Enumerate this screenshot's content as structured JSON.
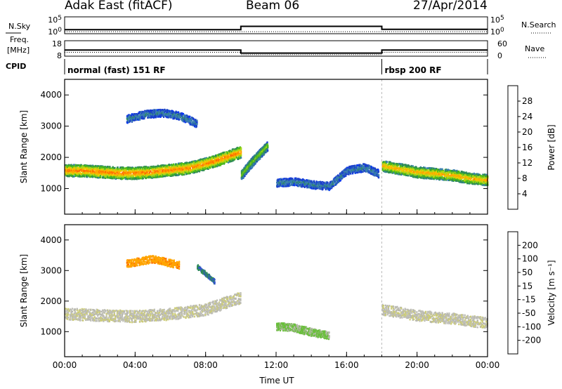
{
  "header": {
    "station": "Adak East (fitACF)",
    "beam": "Beam 06",
    "date": "27/Apr/2014"
  },
  "colors": {
    "power": [
      "#0033ff",
      "#1a3fcc",
      "#3a7fb0",
      "#2e8b57",
      "#4cbb17",
      "#a8d81c",
      "#f0c800",
      "#ffa500",
      "#ff6a00",
      "#ff2a00",
      "#e00000"
    ],
    "velocity": [
      "#ee1111",
      "#ff6a00",
      "#ffa500",
      "#cccc77",
      "#c0c0b8",
      "#b8b8b0",
      "#6abf3c",
      "#2e8b57",
      "#3355cc",
      "#1a2a99"
    ]
  },
  "chart_data": [
    {
      "type": "line",
      "panel": "noise",
      "left_label": "N.Sky",
      "right_label": "N.Search",
      "left_ticks": [
        "10^5",
        "10^0"
      ],
      "right_ticks": [
        "10^5",
        "10^0"
      ],
      "series": [
        {
          "name": "N.Sky",
          "x": [
            0,
            10,
            10,
            18,
            18,
            24
          ],
          "y": [
            1.2,
            1.2,
            2.2,
            2.2,
            1.3,
            1.3
          ]
        },
        {
          "name": "N.Search",
          "x": [
            0,
            24
          ],
          "y": [
            0.6,
            0.6
          ]
        }
      ],
      "ylim": [
        0,
        5
      ]
    },
    {
      "type": "line",
      "panel": "frequency",
      "left_label": "Freq.",
      "left_unit": "[MHz]",
      "right_label": "Nave",
      "left_ticks": [
        "18",
        "8"
      ],
      "right_ticks": [
        "60",
        "0"
      ],
      "series": [
        {
          "name": "Freq.",
          "x": [
            0,
            10,
            10,
            18,
            18,
            24
          ],
          "y": [
            12.0,
            12.0,
            10.0,
            10.0,
            12.0,
            12.0
          ]
        },
        {
          "name": "Nave",
          "x": [
            0,
            10,
            10,
            18,
            18,
            24
          ],
          "y": [
            10.5,
            10.5,
            9.0,
            9.0,
            10.5,
            10.5
          ]
        }
      ],
      "ylim": [
        8,
        18
      ]
    },
    {
      "type": "table",
      "panel": "cpid",
      "label": "CPID",
      "modes": [
        {
          "start": 0,
          "end": 18,
          "name": "normal (fast) 151 RF"
        },
        {
          "start": 18,
          "end": 24,
          "name": "rbsp 200 RF"
        }
      ]
    },
    {
      "type": "heatmap",
      "panel": "power",
      "ylabel": "Slant Range [km]",
      "yticks": [
        1000,
        2000,
        3000,
        4000
      ],
      "ylim": [
        180,
        4500
      ],
      "xlim": [
        0,
        24
      ],
      "colorbar_label": "Power [dB]",
      "colorbar_ticks": [
        4,
        8,
        12,
        16,
        20,
        24,
        28
      ],
      "colorbar_range": [
        0,
        30
      ],
      "regions": [
        {
          "name": "main-band",
          "x": [
            0,
            1,
            2,
            3,
            4,
            5,
            6,
            7,
            8,
            9,
            10
          ],
          "y": [
            1600,
            1600,
            1560,
            1520,
            1520,
            1560,
            1620,
            1680,
            1820,
            2000,
            2200
          ],
          "width": 380,
          "peak": 24
        },
        {
          "name": "rising-band",
          "x": [
            10,
            10.5,
            11,
            11.5
          ],
          "y": [
            1450,
            1800,
            2100,
            2400
          ],
          "width": 300,
          "peak": 14
        },
        {
          "name": "high-patch",
          "x": [
            3.5,
            4.5,
            5.5,
            6.5,
            7.5
          ],
          "y": [
            3250,
            3400,
            3450,
            3350,
            3100
          ],
          "width": 250,
          "peak": 7
        },
        {
          "name": "diagonal",
          "x": [
            12,
            13,
            14,
            15,
            16,
            17,
            17.8
          ],
          "y": [
            1200,
            1250,
            1150,
            1100,
            1600,
            1700,
            1500
          ],
          "width": 250,
          "peak": 7
        },
        {
          "name": "late-band",
          "x": [
            18,
            19,
            20,
            21,
            22,
            23,
            24
          ],
          "y": [
            1750,
            1650,
            1550,
            1500,
            1450,
            1350,
            1300
          ],
          "width": 350,
          "peak": 21
        }
      ]
    },
    {
      "type": "heatmap",
      "panel": "velocity",
      "ylabel": "Slant Range [km]",
      "yticks": [
        1000,
        2000,
        3000,
        4000
      ],
      "ylim": [
        180,
        4500
      ],
      "xlim": [
        0,
        24
      ],
      "xticks": [
        "00:00",
        "04:00",
        "08:00",
        "12:00",
        "16:00",
        "20:00",
        "00:00"
      ],
      "xlabel": "Time UT",
      "colorbar_label": "Velocity [m s⁻¹]",
      "colorbar_ticks": [
        -200,
        -100,
        -50,
        -15,
        15,
        50,
        100,
        200
      ],
      "regions": [
        {
          "name": "main-band",
          "x": [
            0,
            2,
            4,
            6,
            8,
            10
          ],
          "y": [
            1600,
            1560,
            1520,
            1600,
            1750,
            2150
          ],
          "width": 380,
          "velocity": 0
        },
        {
          "name": "high-patch",
          "x": [
            3.5,
            5,
            6.5
          ],
          "y": [
            3250,
            3400,
            3200
          ],
          "width": 250,
          "velocity": -60
        },
        {
          "name": "blue-streak",
          "x": [
            7.5,
            8.5
          ],
          "y": [
            3150,
            2650
          ],
          "width": 150,
          "velocity": 150
        },
        {
          "name": "green-blob",
          "x": [
            12,
            13,
            14,
            15
          ],
          "y": [
            1200,
            1150,
            1000,
            900
          ],
          "width": 250,
          "velocity": 40
        },
        {
          "name": "late-band",
          "x": [
            18,
            20,
            22,
            24
          ],
          "y": [
            1750,
            1550,
            1450,
            1300
          ],
          "width": 350,
          "velocity": 0
        }
      ]
    }
  ]
}
